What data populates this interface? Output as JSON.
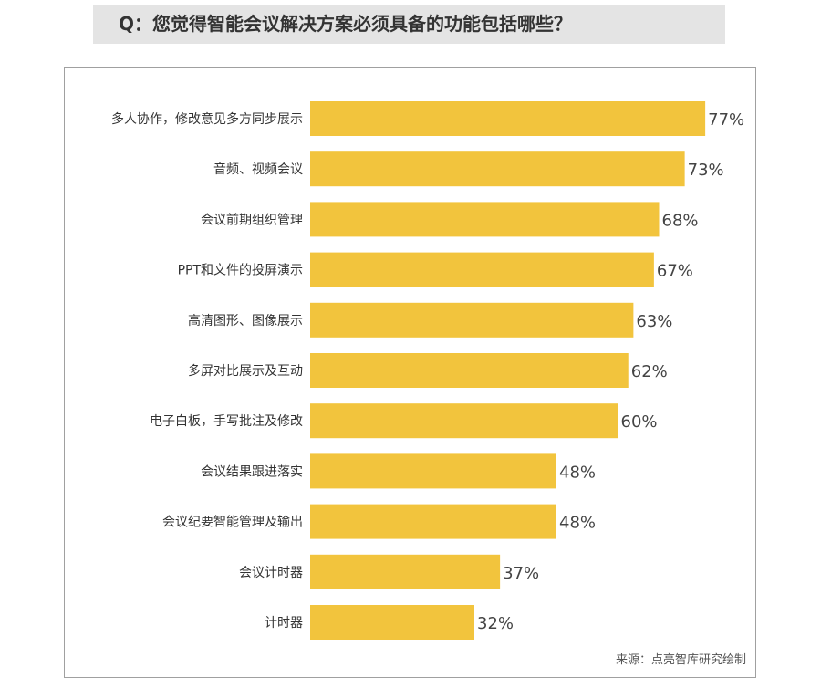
{
  "chart_data": {
    "type": "bar",
    "orientation": "horizontal",
    "title": "Q：您觉得智能会议解决方案必须具备的功能包括哪些？",
    "categories": [
      "多人协作，修改意见多方同步展示",
      "音频、视频会议",
      "会议前期组织管理",
      "PPT和文件的投屏演示",
      "高清图形、图像展示",
      "多屏对比展示及互动",
      "电子白板，手写批注及修改",
      "会议结果跟进落实",
      "会议纪要智能管理及输出",
      "会议计时器",
      "计时器"
    ],
    "values": [
      77,
      73,
      68,
      67,
      63,
      62,
      60,
      48,
      48,
      37,
      32
    ],
    "value_suffix": "%",
    "xlim": [
      0,
      100
    ],
    "grid": false,
    "bar_color": "#f2c43d",
    "source": "来源：点亮智库研究绘制"
  }
}
